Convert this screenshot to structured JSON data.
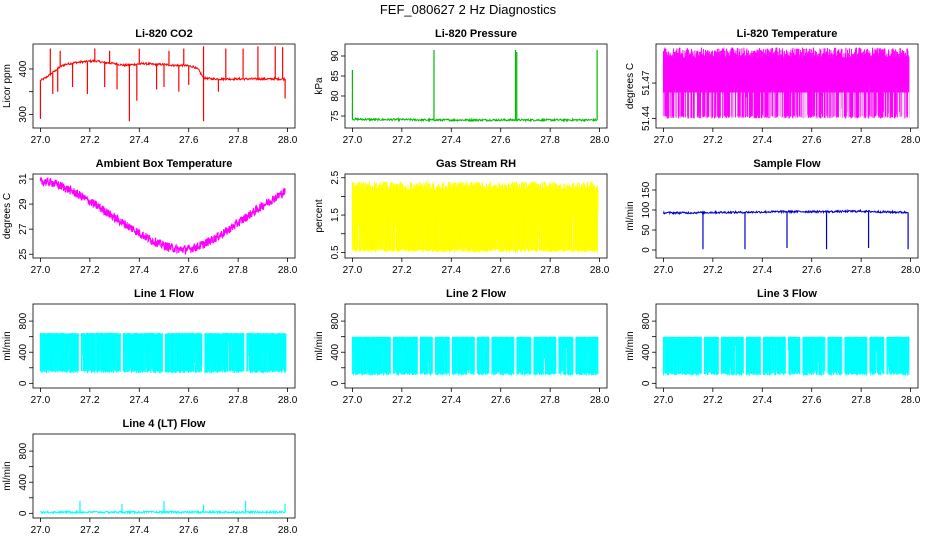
{
  "figure": {
    "title": "FEF_080627  2 Hz Diagnostics"
  },
  "chart_data": [
    {
      "type": "line",
      "title": "Li-820 CO2",
      "xlabel": "",
      "ylabel": "Licor ppm",
      "xlim": [
        26.97,
        28.03
      ],
      "ylim": [
        270,
        455
      ],
      "xticks": [
        27.0,
        27.2,
        27.4,
        27.6,
        27.8,
        28.0
      ],
      "yticks": [
        300,
        350,
        400
      ],
      "ytick_labels": [
        "300",
        "",
        "400"
      ],
      "color": "#ff0000",
      "series": [
        {
          "x": [
            27.0,
            27.02,
            27.05,
            27.08,
            27.1,
            27.14,
            27.18,
            27.22,
            27.26,
            27.3,
            27.34,
            27.38,
            27.42,
            27.46,
            27.5,
            27.54,
            27.58,
            27.62,
            27.64,
            27.66,
            27.7,
            27.75,
            27.8,
            27.85,
            27.9,
            27.95,
            27.99
          ],
          "y": [
            375,
            380,
            392,
            405,
            410,
            414,
            416,
            418,
            414,
            412,
            408,
            410,
            412,
            410,
            410,
            408,
            408,
            405,
            398,
            380,
            378,
            378,
            378,
            378,
            378,
            378,
            378
          ]
        }
      ],
      "spikes": [
        {
          "x": 27.0,
          "y": 290
        },
        {
          "x": 27.05,
          "y": 345
        },
        {
          "x": 27.07,
          "y": 350
        },
        {
          "x": 27.13,
          "y": 360
        },
        {
          "x": 27.19,
          "y": 345
        },
        {
          "x": 27.26,
          "y": 360
        },
        {
          "x": 27.31,
          "y": 355
        },
        {
          "x": 27.36,
          "y": 285
        },
        {
          "x": 27.39,
          "y": 330
        },
        {
          "x": 27.47,
          "y": 355
        },
        {
          "x": 27.5,
          "y": 360
        },
        {
          "x": 27.56,
          "y": 350
        },
        {
          "x": 27.6,
          "y": 365
        },
        {
          "x": 27.66,
          "y": 285
        },
        {
          "x": 27.72,
          "y": 350
        },
        {
          "x": 27.99,
          "y": 335
        },
        {
          "x": 27.04,
          "y": 445
        },
        {
          "x": 27.08,
          "y": 440
        },
        {
          "x": 27.22,
          "y": 445
        },
        {
          "x": 27.28,
          "y": 440
        },
        {
          "x": 27.4,
          "y": 445
        },
        {
          "x": 27.52,
          "y": 440
        },
        {
          "x": 27.58,
          "y": 445
        },
        {
          "x": 27.66,
          "y": 450
        },
        {
          "x": 27.75,
          "y": 445
        },
        {
          "x": 27.82,
          "y": 445
        },
        {
          "x": 27.88,
          "y": 450
        },
        {
          "x": 27.95,
          "y": 450
        },
        {
          "x": 27.98,
          "y": 448
        }
      ]
    },
    {
      "type": "line",
      "title": "Li-820 Pressure",
      "xlabel": "",
      "ylabel": "kPa",
      "xlim": [
        26.97,
        28.03
      ],
      "ylim": [
        72,
        93
      ],
      "xticks": [
        27.0,
        27.2,
        27.4,
        27.6,
        27.8,
        28.0
      ],
      "yticks": [
        75,
        80,
        85,
        90
      ],
      "ytick_labels": [
        "75",
        "80",
        "85",
        "90"
      ],
      "color": "#00bb00",
      "series": [
        {
          "x": [
            27.0,
            27.1,
            27.2,
            27.3,
            27.4,
            27.5,
            27.6,
            27.7,
            27.8,
            27.9,
            27.99
          ],
          "y": [
            74.2,
            74.1,
            74.1,
            74.0,
            74.0,
            74.0,
            74.0,
            74.0,
            74.0,
            74.0,
            74.0
          ]
        }
      ],
      "spikes": [
        {
          "x": 27.0,
          "y": 86.5
        },
        {
          "x": 27.33,
          "y": 91.5
        },
        {
          "x": 27.66,
          "y": 91.5
        },
        {
          "x": 27.665,
          "y": 91.0
        },
        {
          "x": 27.99,
          "y": 91.5
        }
      ]
    },
    {
      "type": "line",
      "title": "Li-820 Temperature",
      "xlabel": "",
      "ylabel": "degrees C",
      "xlim": [
        26.97,
        28.03
      ],
      "ylim": [
        51.432,
        51.503
      ],
      "xticks": [
        27.0,
        27.2,
        27.4,
        27.6,
        27.8,
        28.0
      ],
      "yticks": [
        51.44,
        51.47
      ],
      "ytick_labels": [
        "51.44",
        "51.47"
      ],
      "color": "#ff00ff",
      "band": {
        "low": 51.44,
        "high": 51.5,
        "mostly": 51.47
      }
    },
    {
      "type": "line",
      "title": "Ambient Box Temperature",
      "xlabel": "",
      "ylabel": "degrees C",
      "xlim": [
        26.97,
        28.03
      ],
      "ylim": [
        24.7,
        31.4
      ],
      "xticks": [
        27.0,
        27.2,
        27.4,
        27.6,
        27.8,
        28.0
      ],
      "yticks": [
        25,
        27,
        29,
        31
      ],
      "ytick_labels": [
        "25",
        "27",
        "29",
        "31"
      ],
      "color": "#ff00ff",
      "series": [
        {
          "x": [
            27.0,
            27.05,
            27.1,
            27.15,
            27.2,
            27.25,
            27.3,
            27.35,
            27.4,
            27.45,
            27.5,
            27.55,
            27.6,
            27.65,
            27.7,
            27.75,
            27.8,
            27.85,
            27.9,
            27.95,
            27.99
          ],
          "y": [
            30.8,
            30.7,
            30.3,
            29.8,
            29.2,
            28.6,
            27.9,
            27.3,
            26.7,
            26.1,
            25.7,
            25.4,
            25.4,
            25.7,
            26.2,
            26.8,
            27.5,
            28.2,
            28.9,
            29.5,
            30.0
          ]
        }
      ],
      "band_halfwidth": 0.35
    },
    {
      "type": "line",
      "title": "Gas Stream RH",
      "xlabel": "",
      "ylabel": "percent",
      "xlim": [
        26.97,
        28.03
      ],
      "ylim": [
        0.35,
        2.6
      ],
      "xticks": [
        27.0,
        27.2,
        27.4,
        27.6,
        27.8,
        28.0
      ],
      "yticks": [
        0.5,
        1.0,
        1.5,
        2.0,
        2.5
      ],
      "ytick_labels": [
        "0.5",
        "",
        "1.5",
        "",
        "2.5"
      ],
      "color": "#ffff00",
      "band": {
        "low": 0.5,
        "high": 2.4,
        "mostly": 1.6
      }
    },
    {
      "type": "line",
      "title": "Sample Flow",
      "xlabel": "",
      "ylabel": "ml/min",
      "xlim": [
        26.97,
        28.03
      ],
      "ylim": [
        -20,
        190
      ],
      "xticks": [
        27.0,
        27.2,
        27.4,
        27.6,
        27.8,
        28.0
      ],
      "yticks": [
        0,
        50,
        100,
        150
      ],
      "ytick_labels": [
        "0",
        "50",
        "100",
        "150"
      ],
      "color": "#0000cc",
      "series": [
        {
          "x": [
            27.0,
            27.1,
            27.2,
            27.3,
            27.4,
            27.5,
            27.6,
            27.7,
            27.8,
            27.9,
            27.99
          ],
          "y": [
            93,
            93,
            94,
            94,
            95,
            96,
            96,
            96,
            97,
            95,
            94
          ]
        }
      ],
      "spikes": [
        {
          "x": 27.16,
          "y": 2
        },
        {
          "x": 27.33,
          "y": 2
        },
        {
          "x": 27.5,
          "y": 5
        },
        {
          "x": 27.66,
          "y": 2
        },
        {
          "x": 27.83,
          "y": 5
        },
        {
          "x": 27.99,
          "y": 2
        }
      ]
    },
    {
      "type": "line",
      "title": "Line 1 Flow",
      "xlabel": "",
      "ylabel": "ml/min",
      "xlim": [
        26.97,
        28.03
      ],
      "ylim": [
        -60,
        1020
      ],
      "xticks": [
        27.0,
        27.2,
        27.4,
        27.6,
        27.8,
        28.0
      ],
      "yticks": [
        0,
        200,
        400,
        600,
        800
      ],
      "ytick_labels": [
        "0",
        "",
        "400",
        "",
        "800"
      ],
      "color": "#00ffff",
      "band": {
        "low": 130,
        "high": 650,
        "mostly": 600
      },
      "gaps": [
        27.16,
        27.33,
        27.5,
        27.66,
        27.83
      ]
    },
    {
      "type": "line",
      "title": "Line 2 Flow",
      "xlabel": "",
      "ylabel": "ml/min",
      "xlim": [
        26.97,
        28.03
      ],
      "ylim": [
        -60,
        1020
      ],
      "xticks": [
        27.0,
        27.2,
        27.4,
        27.6,
        27.8,
        28.0
      ],
      "yticks": [
        0,
        200,
        400,
        600,
        800
      ],
      "ytick_labels": [
        "0",
        "",
        "400",
        "",
        "800"
      ],
      "color": "#00ffff",
      "band": {
        "low": 100,
        "high": 600,
        "mostly": 580
      },
      "gaps": [
        27.16,
        27.27,
        27.33,
        27.4,
        27.5,
        27.56,
        27.66,
        27.73,
        27.83,
        27.9
      ]
    },
    {
      "type": "line",
      "title": "Line 3 Flow",
      "xlabel": "",
      "ylabel": "ml/min",
      "xlim": [
        26.97,
        28.03
      ],
      "ylim": [
        -60,
        1020
      ],
      "xticks": [
        27.0,
        27.2,
        27.4,
        27.6,
        27.8,
        28.0
      ],
      "yticks": [
        0,
        200,
        400,
        600,
        800
      ],
      "ytick_labels": [
        "0",
        "",
        "400",
        "",
        "800"
      ],
      "color": "#00ffff",
      "band": {
        "low": 100,
        "high": 600,
        "mostly": 580
      },
      "gaps": [
        27.16,
        27.23,
        27.33,
        27.4,
        27.5,
        27.56,
        27.66,
        27.73,
        27.83,
        27.9
      ]
    },
    {
      "type": "line",
      "title": "Line 4 (LT) Flow",
      "xlabel": "",
      "ylabel": "ml/min",
      "xlim": [
        26.97,
        28.03
      ],
      "ylim": [
        -60,
        1020
      ],
      "xticks": [
        27.0,
        27.2,
        27.4,
        27.6,
        27.8,
        28.0
      ],
      "yticks": [
        0,
        200,
        400,
        600,
        800
      ],
      "ytick_labels": [
        "0",
        "",
        "400",
        "",
        "800"
      ],
      "color": "#00ffff",
      "series": [
        {
          "x": [
            27.0,
            27.2,
            27.4,
            27.6,
            27.8,
            27.99
          ],
          "y": [
            15,
            15,
            15,
            15,
            15,
            15
          ]
        }
      ],
      "spikes": [
        {
          "x": 27.16,
          "y": 160
        },
        {
          "x": 27.33,
          "y": 120
        },
        {
          "x": 27.5,
          "y": 160
        },
        {
          "x": 27.66,
          "y": 110
        },
        {
          "x": 27.83,
          "y": 160
        },
        {
          "x": 27.99,
          "y": 120
        }
      ]
    }
  ]
}
